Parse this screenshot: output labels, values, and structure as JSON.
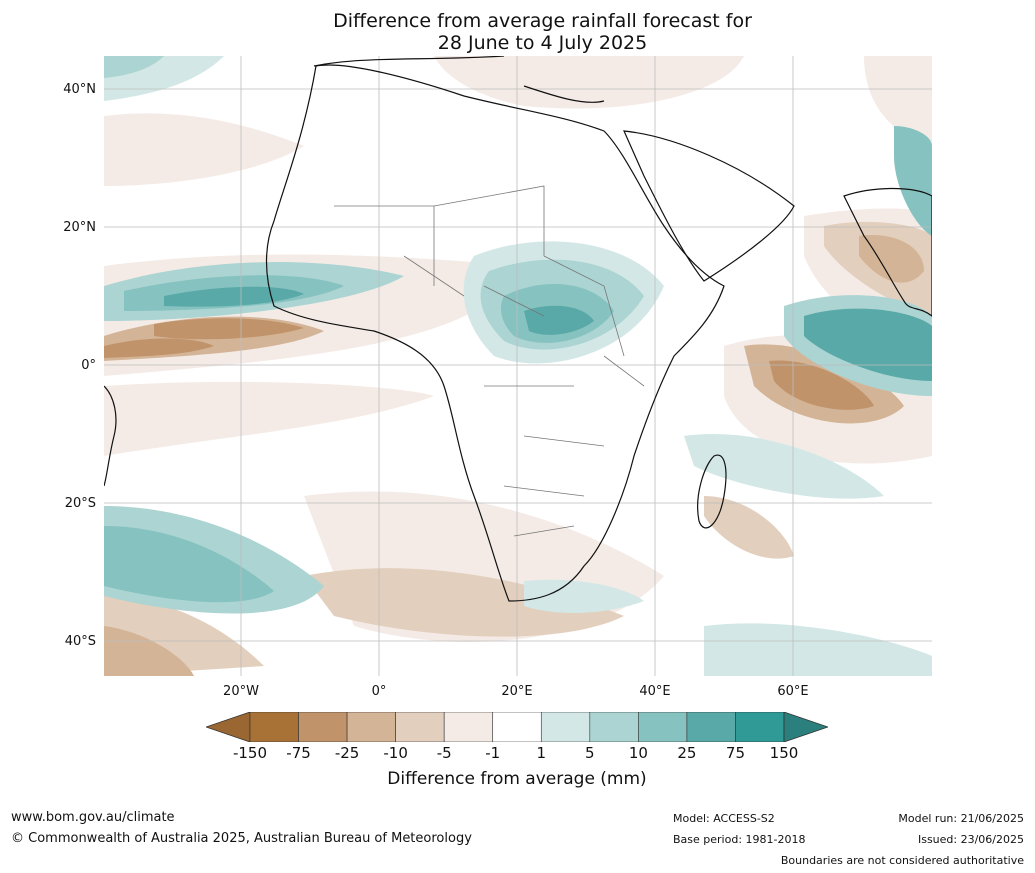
{
  "title_line1": "Difference from average rainfall forecast for",
  "title_line2": "28 June to 4 July 2025",
  "map": {
    "lat_labels": [
      "40°N",
      "20°N",
      "0°",
      "20°S",
      "40°S"
    ],
    "lon_labels": [
      "20°W",
      "0°",
      "20°E",
      "40°E",
      "60°E"
    ]
  },
  "colorbar": {
    "ticks": [
      "-150",
      "-75",
      "-25",
      "-10",
      "-5",
      "-1",
      "1",
      "5",
      "10",
      "25",
      "75",
      "150"
    ],
    "colors": [
      "#a87136",
      "#c0936a",
      "#d4b496",
      "#e3cfbd",
      "#f4ebe6",
      "#ffffff",
      "#d3e8e6",
      "#abd4d2",
      "#86c2c0",
      "#58a9a8",
      "#2f9a96"
    ],
    "under_color": "#9a6631",
    "over_color": "#2b7f7c",
    "label": "Difference from average (mm)"
  },
  "footer": {
    "website": "www.bom.gov.au/climate",
    "copyright": "© Commonwealth of Australia 2025, Australian Bureau of Meteorology",
    "model": "Model: ACCESS-S2",
    "base_period": "Base period: 1981-2018",
    "model_run": "Model run: 21/06/2025",
    "issued": "Issued: 23/06/2025",
    "disclaimer": "Boundaries are not considered authoritative"
  }
}
